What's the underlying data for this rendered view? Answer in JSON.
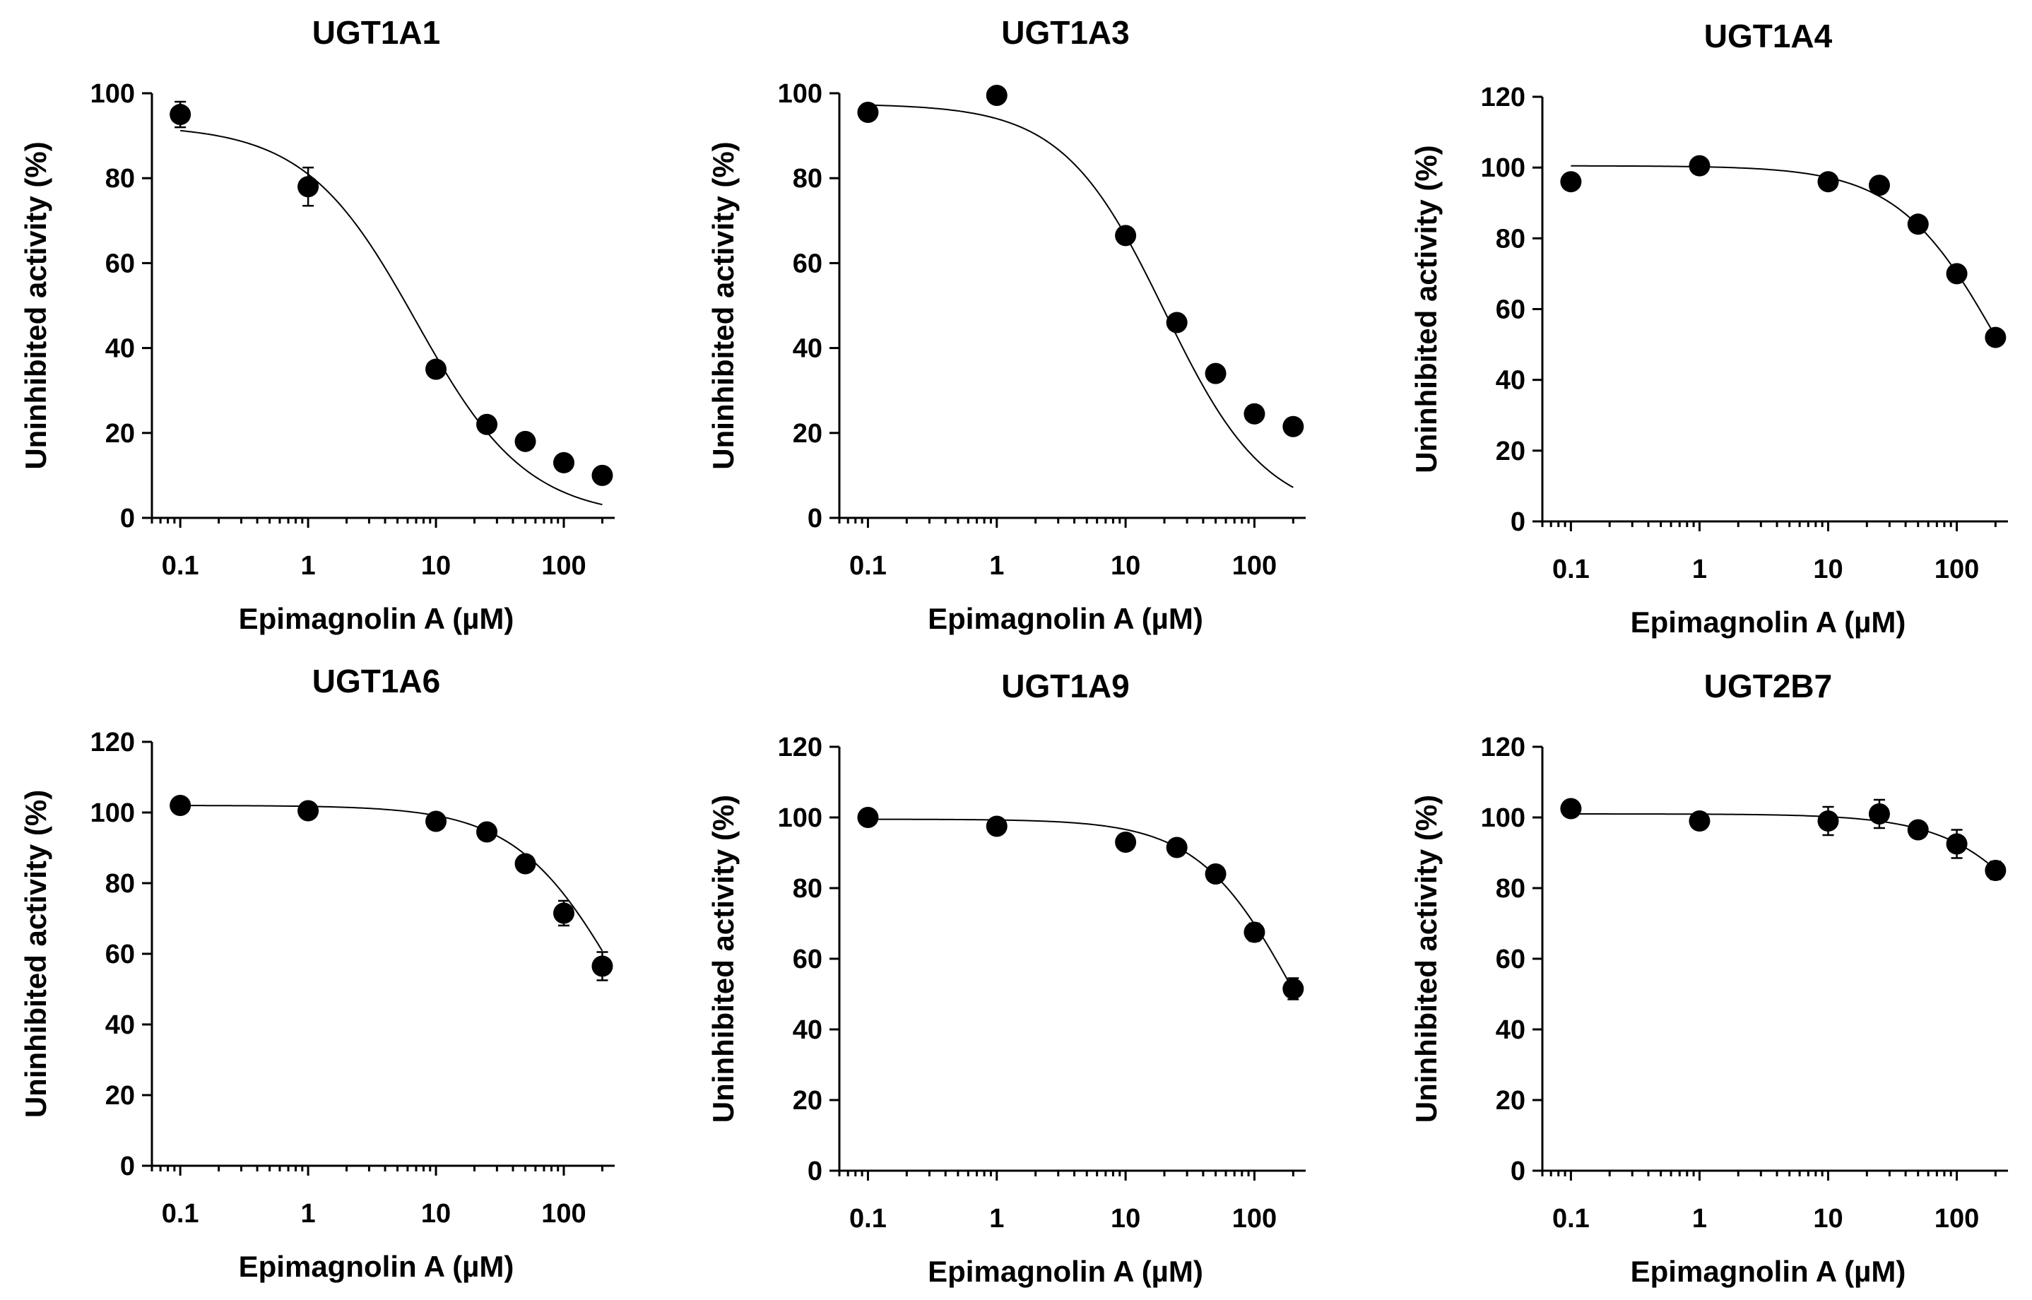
{
  "chart_data": [
    {
      "type": "scatter",
      "title": "UGT1A1",
      "xlabel": "Epimagnolin A (µM)",
      "ylabel": "Uninhibited activity (%)",
      "xscale": "log",
      "xlim": [
        0.06,
        250
      ],
      "ylim": [
        0,
        100
      ],
      "xticks": [
        0.1,
        1,
        10,
        100
      ],
      "xtick_labels": [
        "0.1",
        "1",
        "10",
        "100"
      ],
      "yticks": [
        0,
        20,
        40,
        60,
        80,
        100
      ],
      "ytick_labels": [
        "0",
        "20",
        "40",
        "60",
        "80",
        "100"
      ],
      "series": [
        {
          "name": "UGT1A1",
          "x": [
            0.1,
            1,
            10,
            25,
            50,
            100,
            200
          ],
          "y": [
            95,
            78,
            35,
            22,
            18,
            13,
            10
          ],
          "err": [
            3,
            4.5,
            1.5,
            1.5,
            1,
            1,
            1
          ]
        }
      ],
      "fit": {
        "top": 92.5,
        "ic50": 7.0,
        "hill": 1.0
      }
    },
    {
      "type": "scatter",
      "title": "UGT1A3",
      "xlabel": "Epimagnolin A (µM)",
      "ylabel": "Uninhibited activity (%)",
      "xscale": "log",
      "xlim": [
        0.06,
        250
      ],
      "ylim": [
        0,
        100
      ],
      "xticks": [
        0.1,
        1,
        10,
        100
      ],
      "xtick_labels": [
        "0.1",
        "1",
        "10",
        "100"
      ],
      "yticks": [
        0,
        20,
        40,
        60,
        80,
        100
      ],
      "ytick_labels": [
        "0",
        "20",
        "40",
        "60",
        "80",
        "100"
      ],
      "series": [
        {
          "name": "UGT1A3",
          "x": [
            0.1,
            1,
            10,
            25,
            50,
            100,
            200
          ],
          "y": [
            95.5,
            99.5,
            66.5,
            46,
            34,
            24.5,
            21.5
          ],
          "err": [
            1.5,
            1.5,
            1.5,
            1.5,
            1.5,
            1.5,
            1.5
          ]
        }
      ],
      "fit": {
        "top": 97.5,
        "ic50": 20,
        "hill": 1.1
      }
    },
    {
      "type": "scatter",
      "title": "UGT1A4",
      "xlabel": "Epimagnolin A (µM)",
      "ylabel": "Uninhibited activity (%)",
      "xscale": "log",
      "xlim": [
        0.06,
        250
      ],
      "ylim": [
        0,
        120
      ],
      "xticks": [
        0.1,
        1,
        10,
        100
      ],
      "xtick_labels": [
        "0.1",
        "1",
        "10",
        "100"
      ],
      "yticks": [
        0,
        20,
        40,
        60,
        80,
        100,
        120
      ],
      "ytick_labels": [
        "0",
        "20",
        "40",
        "60",
        "80",
        "100",
        "120"
      ],
      "series": [
        {
          "name": "UGT1A4",
          "x": [
            0.1,
            1,
            10,
            25,
            50,
            100,
            200
          ],
          "y": [
            96,
            100.5,
            96,
            95,
            84,
            70,
            52
          ],
          "err": [
            1.5,
            1.5,
            1.5,
            1.5,
            1.5,
            1.5,
            1.5
          ]
        }
      ],
      "fit": {
        "top": 100.5,
        "ic50": 215,
        "hill": 1.1
      }
    },
    {
      "type": "scatter",
      "title": "UGT1A6",
      "xlabel": "Epimagnolin A (µM)",
      "ylabel": "Uninhibited activity (%)",
      "xscale": "log",
      "xlim": [
        0.06,
        250
      ],
      "ylim": [
        0,
        120
      ],
      "xticks": [
        0.1,
        1,
        10,
        100
      ],
      "xtick_labels": [
        "0.1",
        "1",
        "10",
        "100"
      ],
      "yticks": [
        0,
        20,
        40,
        60,
        80,
        100,
        120
      ],
      "ytick_labels": [
        "0",
        "20",
        "40",
        "60",
        "80",
        "100",
        "120"
      ],
      "series": [
        {
          "name": "UGT1A6",
          "x": [
            0.1,
            1,
            10,
            25,
            50,
            100,
            200
          ],
          "y": [
            102,
            100.5,
            97.5,
            94.5,
            85.5,
            71.5,
            56.5
          ],
          "err": [
            1.5,
            1.5,
            1.5,
            1.5,
            2,
            3.5,
            4
          ]
        }
      ],
      "fit": {
        "top": 102,
        "ic50": 290,
        "hill": 1.05
      }
    },
    {
      "type": "scatter",
      "title": "UGT1A9",
      "xlabel": "Epimagnolin A (µM)",
      "ylabel": "Uninhibited activity (%)",
      "xscale": "log",
      "xlim": [
        0.06,
        250
      ],
      "ylim": [
        0,
        120
      ],
      "xticks": [
        0.1,
        1,
        10,
        100
      ],
      "xtick_labels": [
        "0.1",
        "1",
        "10",
        "100"
      ],
      "yticks": [
        0,
        20,
        40,
        60,
        80,
        100,
        120
      ],
      "ytick_labels": [
        "0",
        "20",
        "40",
        "60",
        "80",
        "100",
        "120"
      ],
      "series": [
        {
          "name": "UGT1A9",
          "x": [
            0.1,
            1,
            10,
            25,
            50,
            100,
            200
          ],
          "y": [
            100,
            97.5,
            93,
            91.5,
            84,
            67.5,
            51.5
          ],
          "err": [
            1.5,
            1.5,
            1.5,
            1.5,
            1.5,
            2.5,
            3
          ]
        }
      ],
      "fit": {
        "top": 99.5,
        "ic50": 210,
        "hill": 1.15
      }
    },
    {
      "type": "scatter",
      "title": "UGT2B7",
      "xlabel": "Epimagnolin A (µM)",
      "ylabel": "Uninhibited activity (%)",
      "xscale": "log",
      "xlim": [
        0.06,
        250
      ],
      "ylim": [
        0,
        120
      ],
      "xticks": [
        0.1,
        1,
        10,
        100
      ],
      "xtick_labels": [
        "0.1",
        "1",
        "10",
        "100"
      ],
      "yticks": [
        0,
        20,
        40,
        60,
        80,
        100,
        120
      ],
      "ytick_labels": [
        "0",
        "20",
        "40",
        "60",
        "80",
        "100",
        "120"
      ],
      "series": [
        {
          "name": "UGT2B7",
          "x": [
            0.1,
            1,
            10,
            25,
            50,
            100,
            200
          ],
          "y": [
            102.5,
            99,
            99,
            101,
            96.5,
            92.5,
            85
          ],
          "err": [
            1.5,
            1.5,
            4,
            4,
            2,
            4,
            2.5
          ]
        }
      ],
      "fit": {
        "top": 101,
        "ic50": 1000,
        "hill": 1.05
      }
    }
  ]
}
